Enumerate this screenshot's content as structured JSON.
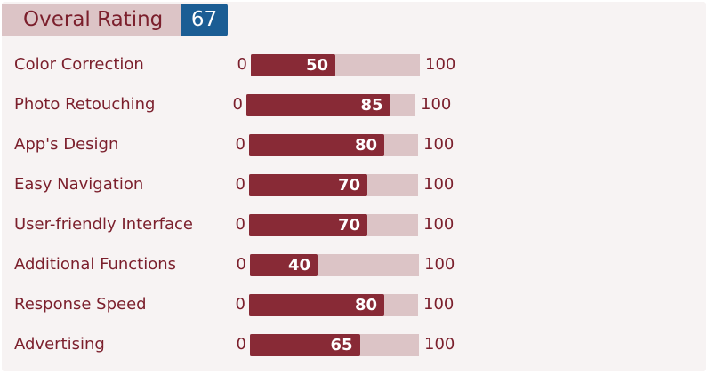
{
  "header": {
    "title": "Overal Rating",
    "score": "67"
  },
  "colors": {
    "text": "#7b1f2c",
    "track": "#dcc4c6",
    "fill": "#882a36",
    "score_badge": "#1b5d94",
    "panel_bg": "#f7f3f3"
  },
  "ratings": [
    {
      "label": "Color Correction",
      "min": "0",
      "value": "50",
      "max": "100"
    },
    {
      "label": "Photo Retouching",
      "min": "0",
      "value": "85",
      "max": "100"
    },
    {
      "label": "App's Design",
      "min": "0",
      "value": "80",
      "max": "100"
    },
    {
      "label": "Easy Navigation",
      "min": "0",
      "value": "70",
      "max": "100"
    },
    {
      "label": "User-friendly Interface",
      "min": "0",
      "value": "70",
      "max": "100"
    },
    {
      "label": "Additional Functions",
      "min": "0",
      "value": "40",
      "max": "100"
    },
    {
      "label": "Response Speed",
      "min": "0",
      "value": "80",
      "max": "100"
    },
    {
      "label": "Advertising",
      "min": "0",
      "value": "65",
      "max": "100"
    }
  ]
}
